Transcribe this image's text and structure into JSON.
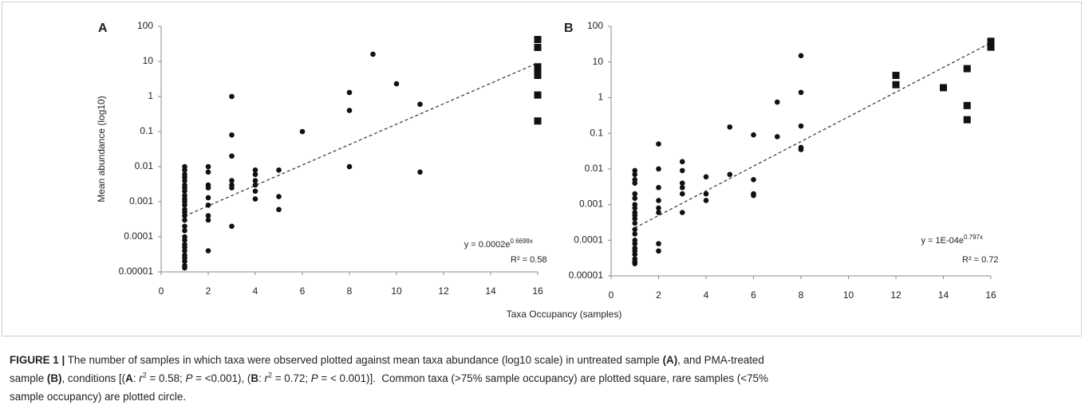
{
  "figure": {
    "x_label": "Taxa Occupancy (samples)"
  },
  "chart_data": [
    {
      "type": "scatter",
      "panel_label": "A",
      "y_label": "Mean abundance (log10)",
      "y_scale": "log",
      "xlim": [
        0,
        16
      ],
      "xticks": [
        0,
        2,
        4,
        6,
        8,
        10,
        12,
        14,
        16
      ],
      "ylim": [
        1e-05,
        100
      ],
      "yticks": [
        100,
        10,
        1,
        0.1,
        0.01,
        0.001,
        0.0001,
        1e-05
      ],
      "series": [
        {
          "marker": "circle",
          "color": "#111111",
          "x": [
            1,
            1,
            1,
            1,
            1,
            1,
            1,
            1,
            1,
            1,
            1,
            1,
            1,
            1,
            1,
            1,
            1,
            1,
            1,
            1,
            1,
            1,
            1,
            1,
            1,
            1,
            1,
            1,
            2,
            2,
            2,
            2,
            2,
            2,
            2,
            2,
            2,
            3,
            3,
            3,
            3,
            3,
            3,
            3,
            4,
            4,
            4,
            4,
            4,
            4,
            5,
            5,
            5,
            6,
            8,
            8,
            8,
            9,
            10,
            11,
            11
          ],
          "values": [
            0.01,
            0.008,
            0.006,
            0.005,
            0.004,
            0.003,
            0.0025,
            0.002,
            0.0015,
            0.0012,
            0.001,
            0.0008,
            0.0006,
            0.0005,
            0.0004,
            0.0003,
            0.0002,
            0.00015,
            0.0001,
            8e-05,
            6e-05,
            5e-05,
            4e-05,
            3e-05,
            2.5e-05,
            2e-05,
            1.5e-05,
            1.3e-05,
            0.01,
            0.007,
            0.003,
            0.0025,
            0.0013,
            0.0008,
            0.0004,
            0.0003,
            4e-05,
            1,
            0.08,
            0.02,
            0.004,
            0.003,
            0.0025,
            0.0002,
            0.008,
            0.006,
            0.004,
            0.003,
            0.002,
            0.0012,
            0.008,
            0.0014,
            0.0006,
            0.1,
            1.3,
            0.4,
            0.01,
            16,
            2.3,
            0.6,
            0.007
          ]
        },
        {
          "marker": "square",
          "color": "#111111",
          "x": [
            16,
            16,
            16,
            16,
            16,
            16,
            16
          ],
          "values": [
            42,
            25,
            7,
            5,
            4,
            1.1,
            0.2
          ]
        }
      ],
      "trendline": {
        "coefficient": 0.0002,
        "exponent": 0.6699,
        "style": "dashed",
        "color": "#333333"
      },
      "equation": "y = 0.0002e",
      "equation_exponent": "0.6699x",
      "r_squared": "R² = 0.58"
    },
    {
      "type": "scatter",
      "panel_label": "B",
      "y_scale": "log",
      "xlim": [
        0,
        16
      ],
      "xticks": [
        0,
        2,
        4,
        6,
        8,
        10,
        12,
        14,
        16
      ],
      "ylim": [
        1e-05,
        100
      ],
      "yticks": [
        100,
        10,
        1,
        0.1,
        0.01,
        0.001,
        0.0001,
        1e-05
      ],
      "series": [
        {
          "marker": "circle",
          "color": "#111111",
          "x": [
            1,
            1,
            1,
            1,
            1,
            1,
            1,
            1,
            1,
            1,
            1,
            1,
            1,
            1,
            1,
            1,
            1,
            1,
            1,
            1,
            1,
            1,
            2,
            2,
            2,
            2,
            2,
            2,
            2,
            2,
            3,
            3,
            3,
            3,
            3,
            3,
            4,
            4,
            4,
            5,
            5,
            6,
            6,
            6,
            6,
            7,
            7,
            8,
            8,
            8,
            8,
            8
          ],
          "values": [
            0.009,
            0.007,
            0.005,
            0.004,
            0.002,
            0.0015,
            0.001,
            0.0008,
            0.0006,
            0.0005,
            0.0004,
            0.0003,
            0.0002,
            0.00015,
            0.0001,
            8e-05,
            6e-05,
            5e-05,
            4e-05,
            3e-05,
            2.5e-05,
            2.2e-05,
            0.05,
            0.01,
            0.003,
            0.0013,
            0.0008,
            0.0006,
            8e-05,
            5e-05,
            0.016,
            0.009,
            0.004,
            0.003,
            0.002,
            0.0006,
            0.006,
            0.002,
            0.0013,
            0.15,
            0.007,
            0.09,
            0.005,
            0.002,
            0.0018,
            0.75,
            0.08,
            15,
            1.4,
            0.16,
            0.04,
            0.035
          ]
        },
        {
          "marker": "square",
          "color": "#111111",
          "x": [
            12,
            12,
            14,
            15,
            15,
            15,
            16,
            16
          ],
          "values": [
            4.2,
            2.3,
            1.9,
            6.5,
            0.6,
            0.24,
            38,
            26
          ]
        }
      ],
      "trendline": {
        "coefficient": 0.0001,
        "exponent": 0.797,
        "style": "dashed",
        "color": "#333333"
      },
      "equation": "y = 1E-04e",
      "equation_exponent": "0.797x",
      "r_squared": "R² = 0.72"
    }
  ],
  "caption": {
    "lines": [
      [
        {
          "text": "FIGURE 1 |",
          "style": "bold"
        },
        {
          "text": " The number of samples in which taxa were observed plotted against mean taxa abundance (log10 scale) in untreated sample "
        },
        {
          "text": "(A)",
          "style": "bold"
        },
        {
          "text": ", and PMA-treated"
        }
      ],
      [
        {
          "text": "sample "
        },
        {
          "text": "(B)",
          "style": "bold"
        },
        {
          "text": ", conditions [("
        },
        {
          "text": "A",
          "style": "bold"
        },
        {
          "text": ": "
        },
        {
          "text": "r",
          "style": "italic"
        },
        {
          "text": "2",
          "style": "sup"
        },
        {
          "text": " = 0.58; "
        },
        {
          "text": "P",
          "style": "italic"
        },
        {
          "text": " = <0.001), ("
        },
        {
          "text": "B",
          "style": "bold"
        },
        {
          "text": ": "
        },
        {
          "text": "r",
          "style": "italic"
        },
        {
          "text": "2",
          "style": "sup"
        },
        {
          "text": " = 0.72; "
        },
        {
          "text": "P",
          "style": "italic"
        },
        {
          "text": " = < 0.001)].  Common taxa (>75% sample occupancy) are plotted square, rare samples (<75%"
        }
      ],
      [
        {
          "text": "sample occupancy) are plotted circle."
        }
      ]
    ]
  }
}
